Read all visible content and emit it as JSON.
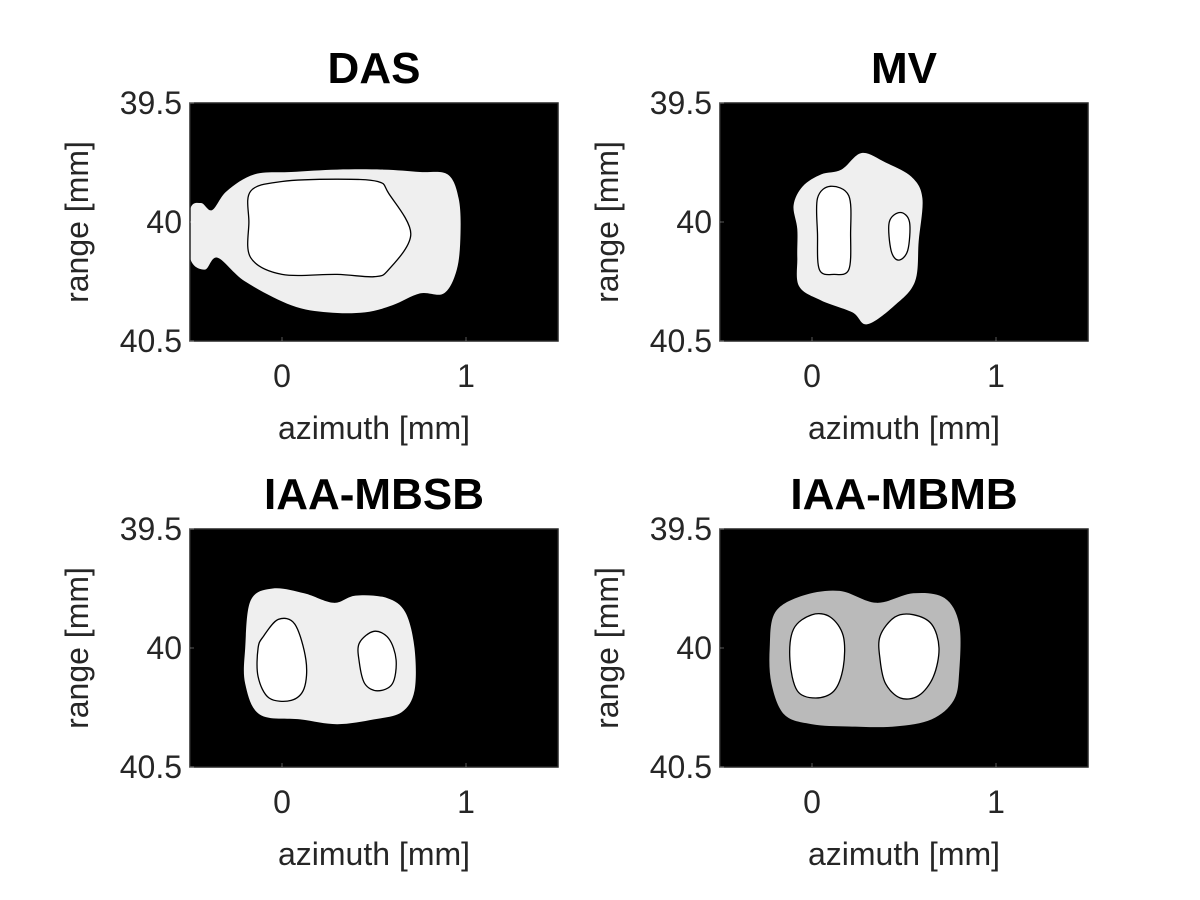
{
  "colors": {
    "background": "#000000",
    "figure_bg": "#ffffff",
    "region_light": "#efefef",
    "region_gray": "#bababa",
    "hole": "#ffffff",
    "contour": "#000000",
    "text": "#262626"
  },
  "chart_data": [
    {
      "type": "contour",
      "title": "DAS",
      "xlabel": "azimuth [mm]",
      "ylabel": "range [mm]",
      "xlim": [
        -0.5,
        1.5
      ],
      "ylim": [
        39.5,
        40.5
      ],
      "y_reversed": true,
      "xticks": [
        0,
        1
      ],
      "xtick_labels": [
        "0",
        "1"
      ],
      "yticks": [
        39.5,
        40,
        40.5
      ],
      "ytick_labels": [
        "39.5",
        "40",
        "40.5"
      ],
      "grid": false,
      "regions": [
        {
          "level": "outer",
          "fill": "#efefef",
          "points": [
            [
              -0.5,
              39.95
            ],
            [
              -0.44,
              39.92
            ],
            [
              -0.38,
              39.95
            ],
            [
              -0.3,
              39.87
            ],
            [
              -0.15,
              39.8
            ],
            [
              0.05,
              39.79
            ],
            [
              0.3,
              39.78
            ],
            [
              0.55,
              39.78
            ],
            [
              0.75,
              39.79
            ],
            [
              0.9,
              39.8
            ],
            [
              0.96,
              39.9
            ],
            [
              0.97,
              40.05
            ],
            [
              0.95,
              40.2
            ],
            [
              0.88,
              40.3
            ],
            [
              0.75,
              40.3
            ],
            [
              0.6,
              40.35
            ],
            [
              0.45,
              40.38
            ],
            [
              0.25,
              40.38
            ],
            [
              0.05,
              40.35
            ],
            [
              -0.2,
              40.25
            ],
            [
              -0.35,
              40.15
            ],
            [
              -0.42,
              40.2
            ],
            [
              -0.5,
              40.15
            ]
          ]
        },
        {
          "level": "inner",
          "fill": "#ffffff",
          "points": [
            [
              -0.17,
              39.87
            ],
            [
              0.0,
              39.83
            ],
            [
              0.3,
              39.82
            ],
            [
              0.52,
              39.83
            ],
            [
              0.58,
              39.88
            ],
            [
              0.7,
              40.05
            ],
            [
              0.58,
              40.2
            ],
            [
              0.5,
              40.23
            ],
            [
              0.3,
              40.22
            ],
            [
              0.0,
              40.22
            ],
            [
              -0.17,
              40.15
            ],
            [
              -0.18,
              40.0
            ]
          ]
        }
      ]
    },
    {
      "type": "contour",
      "title": "MV",
      "xlabel": "azimuth [mm]",
      "ylabel": "range [mm]",
      "xlim": [
        -0.5,
        1.5
      ],
      "ylim": [
        39.5,
        40.5
      ],
      "y_reversed": true,
      "xticks": [
        0,
        1
      ],
      "xtick_labels": [
        "0",
        "1"
      ],
      "yticks": [
        39.5,
        40,
        40.5
      ],
      "ytick_labels": [
        "39.5",
        "40",
        "40.5"
      ],
      "grid": false,
      "regions": [
        {
          "level": "outer",
          "fill": "#efefef",
          "points": [
            [
              -0.1,
              39.93
            ],
            [
              -0.05,
              39.85
            ],
            [
              0.05,
              39.8
            ],
            [
              0.16,
              39.78
            ],
            [
              0.27,
              39.71
            ],
            [
              0.4,
              39.75
            ],
            [
              0.54,
              39.81
            ],
            [
              0.6,
              39.9
            ],
            [
              0.58,
              40.08
            ],
            [
              0.56,
              40.25
            ],
            [
              0.45,
              40.35
            ],
            [
              0.3,
              40.43
            ],
            [
              0.22,
              40.38
            ],
            [
              0.05,
              40.33
            ],
            [
              -0.07,
              40.27
            ],
            [
              -0.08,
              40.15
            ],
            [
              -0.08,
              40.03
            ]
          ]
        },
        {
          "level": "inner",
          "fill": "#ffffff",
          "points": [
            [
              0.03,
              39.9
            ],
            [
              0.1,
              39.85
            ],
            [
              0.2,
              39.89
            ],
            [
              0.21,
              40.05
            ],
            [
              0.2,
              40.2
            ],
            [
              0.12,
              40.22
            ],
            [
              0.04,
              40.2
            ],
            [
              0.03,
              40.05
            ]
          ]
        },
        {
          "level": "inner",
          "fill": "#ffffff",
          "points": [
            [
              0.42,
              40.0
            ],
            [
              0.48,
              39.96
            ],
            [
              0.53,
              40.0
            ],
            [
              0.52,
              40.12
            ],
            [
              0.47,
              40.16
            ],
            [
              0.43,
              40.12
            ]
          ]
        }
      ]
    },
    {
      "type": "contour",
      "title": "IAA-MBSB",
      "xlabel": "azimuth [mm]",
      "ylabel": "range [mm]",
      "xlim": [
        -0.5,
        1.5
      ],
      "ylim": [
        39.5,
        40.5
      ],
      "y_reversed": true,
      "xticks": [
        0,
        1
      ],
      "xtick_labels": [
        "0",
        "1"
      ],
      "yticks": [
        39.5,
        40,
        40.5
      ],
      "ytick_labels": [
        "39.5",
        "40",
        "40.5"
      ],
      "grid": false,
      "regions": [
        {
          "level": "outer",
          "fill": "#efefef",
          "points": [
            [
              -0.17,
              39.8
            ],
            [
              -0.05,
              39.75
            ],
            [
              0.12,
              39.77
            ],
            [
              0.28,
              39.81
            ],
            [
              0.4,
              39.78
            ],
            [
              0.57,
              39.79
            ],
            [
              0.67,
              39.85
            ],
            [
              0.72,
              40.0
            ],
            [
              0.72,
              40.18
            ],
            [
              0.65,
              40.27
            ],
            [
              0.5,
              40.3
            ],
            [
              0.3,
              40.32
            ],
            [
              0.1,
              40.3
            ],
            [
              -0.12,
              40.28
            ],
            [
              -0.2,
              40.15
            ],
            [
              -0.2,
              40.0
            ]
          ]
        },
        {
          "level": "inner",
          "fill": "#ffffff",
          "points": [
            [
              -0.1,
              39.95
            ],
            [
              -0.02,
              39.88
            ],
            [
              0.07,
              39.9
            ],
            [
              0.13,
              40.05
            ],
            [
              0.12,
              40.17
            ],
            [
              0.05,
              40.22
            ],
            [
              -0.07,
              40.21
            ],
            [
              -0.13,
              40.12
            ],
            [
              -0.13,
              40.0
            ]
          ]
        },
        {
          "level": "inner",
          "fill": "#ffffff",
          "points": [
            [
              0.42,
              39.98
            ],
            [
              0.5,
              39.93
            ],
            [
              0.58,
              39.96
            ],
            [
              0.62,
              40.05
            ],
            [
              0.6,
              40.15
            ],
            [
              0.52,
              40.18
            ],
            [
              0.45,
              40.15
            ],
            [
              0.42,
              40.06
            ]
          ]
        }
      ]
    },
    {
      "type": "contour",
      "title": "IAA-MBMB",
      "xlabel": "azimuth [mm]",
      "ylabel": "range [mm]",
      "xlim": [
        -0.5,
        1.5
      ],
      "ylim": [
        39.5,
        40.5
      ],
      "y_reversed": true,
      "xticks": [
        0,
        1
      ],
      "xtick_labels": [
        "0",
        "1"
      ],
      "yticks": [
        39.5,
        40,
        40.5
      ],
      "ytick_labels": [
        "39.5",
        "40",
        "40.5"
      ],
      "grid": false,
      "regions": [
        {
          "level": "outer",
          "fill": "#bababa",
          "points": [
            [
              -0.2,
              39.85
            ],
            [
              -0.05,
              39.78
            ],
            [
              0.15,
              39.76
            ],
            [
              0.35,
              39.81
            ],
            [
              0.55,
              39.77
            ],
            [
              0.72,
              39.79
            ],
            [
              0.8,
              39.9
            ],
            [
              0.8,
              40.1
            ],
            [
              0.77,
              40.22
            ],
            [
              0.65,
              40.3
            ],
            [
              0.45,
              40.33
            ],
            [
              0.2,
              40.33
            ],
            [
              0.0,
              40.32
            ],
            [
              -0.15,
              40.28
            ],
            [
              -0.22,
              40.15
            ],
            [
              -0.23,
              40.0
            ]
          ]
        },
        {
          "level": "inner",
          "fill": "#ffffff",
          "points": [
            [
              -0.1,
              39.92
            ],
            [
              0.0,
              39.86
            ],
            [
              0.1,
              39.87
            ],
            [
              0.17,
              39.95
            ],
            [
              0.17,
              40.08
            ],
            [
              0.12,
              40.18
            ],
            [
              0.02,
              40.21
            ],
            [
              -0.08,
              40.18
            ],
            [
              -0.12,
              40.05
            ]
          ]
        },
        {
          "level": "inner",
          "fill": "#ffffff",
          "points": [
            [
              0.37,
              39.95
            ],
            [
              0.45,
              39.87
            ],
            [
              0.55,
              39.86
            ],
            [
              0.65,
              39.9
            ],
            [
              0.69,
              40.0
            ],
            [
              0.66,
              40.12
            ],
            [
              0.58,
              40.2
            ],
            [
              0.48,
              40.21
            ],
            [
              0.4,
              40.15
            ],
            [
              0.37,
              40.05
            ]
          ]
        }
      ]
    }
  ]
}
